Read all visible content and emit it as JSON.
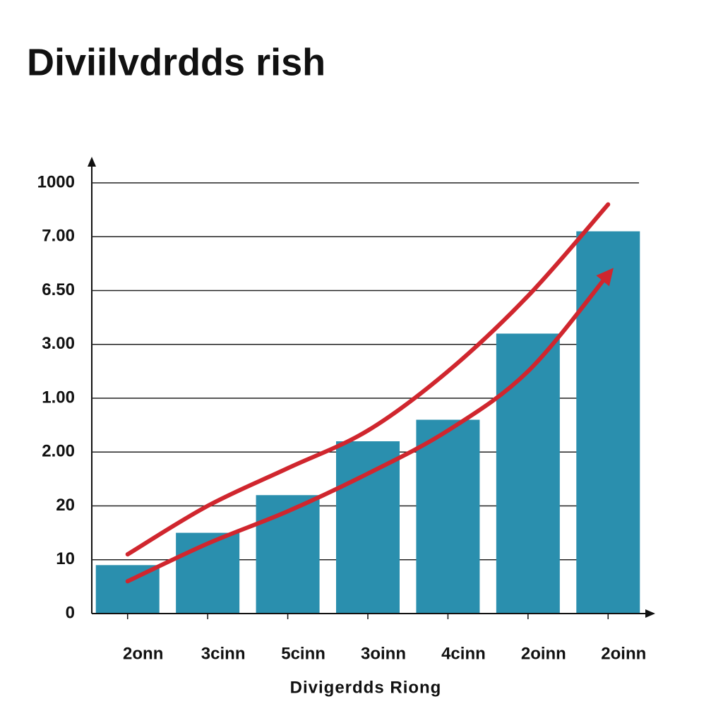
{
  "chart_data": {
    "type": "bar",
    "title": "Diviilvdrdds rish",
    "x_label": "Divigerdds Riong",
    "categories": [
      "2onn",
      "3cinn",
      "5cinn",
      "3oinn",
      "4cinn",
      "2oinn",
      "2oinn"
    ],
    "values": [
      0.9,
      1.5,
      2.2,
      3.2,
      3.6,
      5.2,
      7.1
    ],
    "color": "#2a8fae",
    "lines": [
      {
        "color": "#d0262e",
        "values": [
          1.1,
          2.0,
          2.7,
          3.4,
          4.5,
          5.9,
          7.6
        ]
      },
      {
        "color": "#d0262e",
        "values": [
          0.6,
          1.3,
          1.9,
          2.6,
          3.4,
          4.5,
          6.3
        ],
        "arrow": true
      }
    ],
    "ylim": [
      0,
      8
    ],
    "yticks": [
      {
        "value": 0,
        "label": "0"
      },
      {
        "value": 1,
        "label": "10"
      },
      {
        "value": 2,
        "label": "20"
      },
      {
        "value": 3,
        "label": "2.00"
      },
      {
        "value": 4,
        "label": "1.00"
      },
      {
        "value": 5,
        "label": "3.00"
      },
      {
        "value": 6,
        "label": "6.50"
      },
      {
        "value": 7,
        "label": "7.00"
      },
      {
        "value": 8,
        "label": "1000"
      }
    ],
    "grid": true
  }
}
